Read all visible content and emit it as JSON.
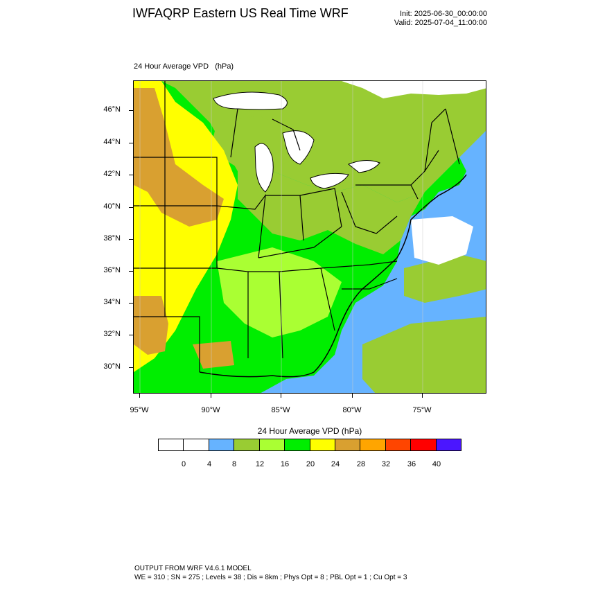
{
  "header": {
    "title": "IWFAQRP Eastern US Real Time WRF",
    "init": "Init: 2025-06-30_00:00:00",
    "valid": "Valid: 2025-07-04_11:00:00"
  },
  "map": {
    "subtitle": "24 Hour Average VPD   (hPa)",
    "lat_labels": [
      "46°N",
      "44°N",
      "42°N",
      "40°N",
      "38°N",
      "36°N",
      "34°N",
      "32°N",
      "30°N"
    ],
    "lon_labels": [
      "95°W",
      "90°W",
      "85°W",
      "80°W",
      "75°W"
    ],
    "colors": {
      "water_ocean": "#66b3ff",
      "lakes": "#ffffff",
      "land_base": "#99cc33"
    }
  },
  "colorbar": {
    "title": "24 Hour Average VPD  (hPa)",
    "labels": [
      "0",
      "4",
      "8",
      "12",
      "16",
      "20",
      "24",
      "28",
      "32",
      "36",
      "40"
    ],
    "colors": [
      "#ffffff",
      "#ffffff",
      "#66b3ff",
      "#99cc33",
      "#aaff33",
      "#00ee00",
      "#ffff00",
      "#d9a030",
      "#ffa500",
      "#ff4500",
      "#ff0000",
      "#4b16ff"
    ]
  },
  "footer": {
    "line1": "OUTPUT FROM WRF V4.6.1 MODEL",
    "line2": "WE = 310 ; SN = 275 ; Levels = 38 ; Dis = 8km ; Phys Opt = 8 ; PBL Opt = 1 ; Cu Opt = 3"
  }
}
